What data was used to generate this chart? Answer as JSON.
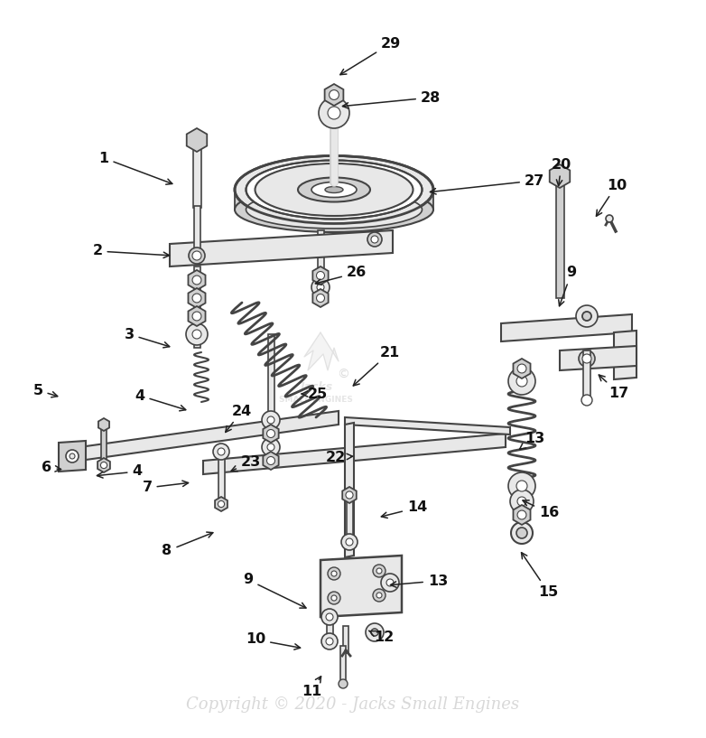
{
  "background_color": "#ffffff",
  "line_color": "#444444",
  "fill_light": "#e8e8e8",
  "fill_mid": "#d0d0d0",
  "fill_dark": "#b8b8b8",
  "copyright_text": "Copyright © 2020 - Jacks Small Engines",
  "copyright_color": "#cccccc",
  "copyright_fontsize": 13,
  "label_fontsize": 11.5,
  "label_color": "#111111",
  "figsize": [
    7.82,
    8.17
  ],
  "dpi": 100,
  "labels": [
    [
      "1",
      115,
      175,
      195,
      205
    ],
    [
      "2",
      108,
      278,
      192,
      283
    ],
    [
      "3",
      143,
      370,
      192,
      385
    ],
    [
      "4",
      155,
      438,
      210,
      455
    ],
    [
      "4",
      152,
      522,
      103,
      527
    ],
    [
      "5",
      42,
      432,
      68,
      440
    ],
    [
      "6",
      52,
      518,
      72,
      520
    ],
    [
      "7",
      163,
      540,
      213,
      534
    ],
    [
      "8",
      185,
      610,
      240,
      588
    ],
    [
      "9",
      275,
      642,
      343,
      675
    ],
    [
      "10",
      283,
      708,
      337,
      718
    ],
    [
      "11",
      345,
      765,
      358,
      745
    ],
    [
      "12",
      425,
      706,
      408,
      698
    ],
    [
      "13",
      485,
      643,
      428,
      648
    ],
    [
      "14",
      462,
      562,
      418,
      573
    ],
    [
      "15",
      607,
      655,
      575,
      608
    ],
    [
      "16",
      608,
      568,
      575,
      552
    ],
    [
      "17",
      685,
      435,
      660,
      412
    ],
    [
      "20",
      622,
      182,
      618,
      210
    ],
    [
      "21",
      432,
      390,
      388,
      430
    ],
    [
      "22",
      372,
      506,
      395,
      505
    ],
    [
      "23",
      278,
      512,
      252,
      523
    ],
    [
      "24",
      268,
      455,
      247,
      482
    ],
    [
      "25",
      352,
      436,
      330,
      436
    ],
    [
      "26",
      395,
      302,
      345,
      315
    ],
    [
      "27",
      592,
      200,
      472,
      213
    ],
    [
      "28",
      477,
      108,
      375,
      118
    ],
    [
      "29",
      433,
      48,
      373,
      85
    ],
    [
      "9",
      633,
      302,
      618,
      343
    ],
    [
      "10",
      683,
      205,
      658,
      243
    ],
    [
      "13",
      592,
      485,
      572,
      500
    ]
  ]
}
